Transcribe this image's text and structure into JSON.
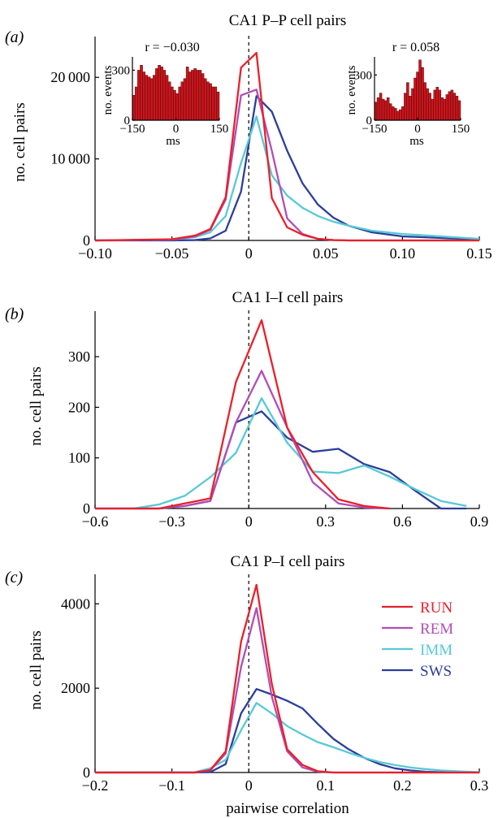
{
  "chart_data": [
    {
      "panel_label": "(a)",
      "title": "CA1 P–P cell pairs",
      "type": "line",
      "xlim": [
        -0.1,
        0.15
      ],
      "ylim": [
        0,
        25000
      ],
      "xticks": [
        -0.1,
        -0.05,
        0,
        0.05,
        0.1,
        0.15
      ],
      "xtick_labels": [
        "−0.10",
        "−0.05",
        "0",
        "0.05",
        "0.10",
        "0.15"
      ],
      "yticks": [
        0,
        10000,
        20000
      ],
      "ytick_labels": [
        "0",
        "10 000",
        "20 000"
      ],
      "ylabel": "no. cell pairs",
      "xlabel": "",
      "series": [
        {
          "name": "SWS",
          "color": "#2b3e9a",
          "x": [
            -0.1,
            -0.05,
            -0.035,
            -0.025,
            -0.015,
            -0.005,
            0.005,
            0.015,
            0.025,
            0.035,
            0.045,
            0.055,
            0.065,
            0.08,
            0.1,
            0.15
          ],
          "y": [
            0,
            0,
            50,
            250,
            1200,
            6000,
            17700,
            15800,
            11000,
            7000,
            4400,
            2800,
            1800,
            1000,
            500,
            100
          ]
        },
        {
          "name": "IMM",
          "color": "#57c9d6",
          "x": [
            -0.1,
            -0.05,
            -0.035,
            -0.025,
            -0.015,
            -0.005,
            0.005,
            0.015,
            0.025,
            0.035,
            0.045,
            0.055,
            0.065,
            0.08,
            0.1,
            0.15
          ],
          "y": [
            0,
            100,
            400,
            1000,
            3000,
            9500,
            15200,
            8000,
            5500,
            4000,
            3000,
            2300,
            1800,
            1200,
            800,
            200
          ]
        },
        {
          "name": "REM",
          "color": "#b14db6",
          "x": [
            -0.1,
            -0.05,
            -0.035,
            -0.025,
            -0.015,
            -0.005,
            0.005,
            0.015,
            0.025,
            0.035,
            0.045,
            0.055,
            0.065,
            0.08,
            0.1,
            0.15
          ],
          "y": [
            0,
            100,
            500,
            1300,
            5000,
            17800,
            18500,
            11000,
            2700,
            800,
            200,
            50,
            0,
            0,
            0,
            0
          ]
        },
        {
          "name": "RUN",
          "color": "#e8202b",
          "x": [
            -0.1,
            -0.05,
            -0.035,
            -0.025,
            -0.015,
            -0.005,
            0.005,
            0.015,
            0.025,
            0.035,
            0.045,
            0.055,
            0.065,
            0.08,
            0.1,
            0.15
          ],
          "y": [
            0,
            150,
            600,
            1400,
            5300,
            21200,
            23000,
            5200,
            1600,
            700,
            200,
            50,
            0,
            0,
            0,
            0
          ]
        }
      ],
      "insets": [
        {
          "r_label": "r = −0.030",
          "ylabel": "no. events",
          "xlabel": "ms",
          "xticks": [
            -150,
            0,
            150
          ],
          "xtick_labels": [
            "−150",
            "0",
            "150"
          ],
          "yticks": [
            0,
            300
          ],
          "ytick_labels": [
            "0",
            "300"
          ],
          "ylim": [
            0,
            380
          ],
          "color": "#c8161d",
          "values": [
            150,
            200,
            300,
            330,
            290,
            270,
            260,
            250,
            270,
            310,
            330,
            320,
            300,
            270,
            230,
            200,
            180,
            160,
            200,
            230,
            250,
            320,
            290,
            300,
            310,
            300,
            300,
            280,
            250,
            230,
            220,
            200,
            200,
            170
          ]
        },
        {
          "r_label": "r = 0.058",
          "ylabel": "no. events",
          "xlabel": "ms",
          "xticks": [
            -150,
            0,
            150
          ],
          "xtick_labels": [
            "−150",
            "0",
            "150"
          ],
          "yticks": [
            0,
            300
          ],
          "ytick_labels": [
            "0",
            "300"
          ],
          "ylim": [
            0,
            420
          ],
          "color": "#c8161d",
          "values": [
            120,
            150,
            180,
            140,
            130,
            150,
            110,
            90,
            80,
            60,
            70,
            90,
            180,
            250,
            160,
            210,
            280,
            320,
            400,
            350,
            250,
            210,
            180,
            140,
            200,
            220,
            200,
            150,
            140,
            170,
            190,
            200,
            180,
            160,
            130
          ]
        }
      ]
    },
    {
      "panel_label": "(b)",
      "title": "CA1 I–I cell pairs",
      "type": "line",
      "xlim": [
        -0.6,
        0.9
      ],
      "ylim": [
        0,
        390
      ],
      "xticks": [
        -0.6,
        -0.3,
        0,
        0.3,
        0.6,
        0.9
      ],
      "xtick_labels": [
        "−0.6",
        "−0.3",
        "0",
        "0.3",
        "0.6",
        "0.9"
      ],
      "yticks": [
        0,
        100,
        200,
        300
      ],
      "ytick_labels": [
        "0",
        "100",
        "200",
        "300"
      ],
      "ylabel": "no. cell pairs",
      "xlabel": "",
      "series": [
        {
          "name": "SWS",
          "color": "#2b3e9a",
          "x": [
            -0.6,
            -0.35,
            -0.25,
            -0.15,
            -0.05,
            0.05,
            0.15,
            0.25,
            0.35,
            0.45,
            0.55,
            0.65,
            0.75,
            0.85
          ],
          "y": [
            0,
            0,
            5,
            15,
            170,
            192,
            140,
            112,
            118,
            88,
            72,
            35,
            0,
            0
          ]
        },
        {
          "name": "IMM",
          "color": "#57c9d6",
          "x": [
            -0.6,
            -0.45,
            -0.35,
            -0.25,
            -0.15,
            -0.05,
            0.05,
            0.15,
            0.25,
            0.35,
            0.45,
            0.55,
            0.65,
            0.75,
            0.85
          ],
          "y": [
            0,
            0,
            8,
            25,
            62,
            110,
            218,
            130,
            73,
            70,
            85,
            63,
            38,
            15,
            5
          ]
        },
        {
          "name": "REM",
          "color": "#b14db6",
          "x": [
            -0.6,
            -0.35,
            -0.25,
            -0.15,
            -0.05,
            0.05,
            0.15,
            0.25,
            0.35,
            0.45,
            0.55
          ],
          "y": [
            0,
            0,
            5,
            15,
            170,
            272,
            160,
            52,
            10,
            2,
            0
          ]
        },
        {
          "name": "RUN",
          "color": "#e8202b",
          "x": [
            -0.6,
            -0.35,
            -0.25,
            -0.15,
            -0.05,
            0.05,
            0.15,
            0.25,
            0.35,
            0.45,
            0.55
          ],
          "y": [
            0,
            0,
            10,
            20,
            250,
            372,
            160,
            72,
            18,
            5,
            0
          ]
        }
      ]
    },
    {
      "panel_label": "(c)",
      "title": "CA1 P–I cell pairs",
      "type": "line",
      "xlim": [
        -0.2,
        0.3
      ],
      "ylim": [
        0,
        4700
      ],
      "xticks": [
        -0.2,
        -0.1,
        0,
        0.1,
        0.2,
        0.3
      ],
      "xtick_labels": [
        "−0.2",
        "−0.1",
        "0",
        "0.1",
        "0.2",
        "0.3"
      ],
      "yticks": [
        0,
        2000,
        4000
      ],
      "ytick_labels": [
        "0",
        "2000",
        "4000"
      ],
      "ylabel": "no. cell pairs",
      "xlabel": "pairwise correlation",
      "legend": {
        "position": "right",
        "entries": [
          "RUN",
          "REM",
          "IMM",
          "SWS"
        ]
      },
      "series": [
        {
          "name": "SWS",
          "color": "#2b3e9a",
          "x": [
            -0.2,
            -0.07,
            -0.05,
            -0.03,
            -0.01,
            0.01,
            0.03,
            0.05,
            0.07,
            0.09,
            0.11,
            0.13,
            0.15,
            0.17,
            0.19,
            0.21,
            0.23,
            0.25,
            0.3
          ],
          "y": [
            0,
            0,
            10,
            200,
            1400,
            1980,
            1850,
            1700,
            1520,
            1150,
            800,
            550,
            350,
            200,
            100,
            50,
            20,
            10,
            0
          ]
        },
        {
          "name": "IMM",
          "color": "#57c9d6",
          "x": [
            -0.2,
            -0.07,
            -0.05,
            -0.03,
            -0.01,
            0.01,
            0.03,
            0.05,
            0.07,
            0.09,
            0.11,
            0.13,
            0.15,
            0.17,
            0.19,
            0.21,
            0.23,
            0.25,
            0.27,
            0.3
          ],
          "y": [
            0,
            10,
            100,
            300,
            1000,
            1650,
            1400,
            1100,
            900,
            720,
            600,
            470,
            350,
            250,
            180,
            120,
            80,
            50,
            30,
            5
          ]
        },
        {
          "name": "REM",
          "color": "#b14db6",
          "x": [
            -0.2,
            -0.07,
            -0.05,
            -0.03,
            -0.01,
            0.01,
            0.03,
            0.05,
            0.07,
            0.09,
            0.11,
            0.3
          ],
          "y": [
            0,
            0,
            50,
            450,
            2500,
            3900,
            1800,
            500,
            120,
            20,
            0,
            0
          ]
        },
        {
          "name": "RUN",
          "color": "#e8202b",
          "x": [
            -0.2,
            -0.07,
            -0.05,
            -0.03,
            -0.01,
            0.01,
            0.03,
            0.05,
            0.07,
            0.09,
            0.11,
            0.3
          ],
          "y": [
            0,
            0,
            60,
            500,
            3100,
            4450,
            2100,
            550,
            180,
            30,
            0,
            0
          ]
        }
      ]
    }
  ]
}
